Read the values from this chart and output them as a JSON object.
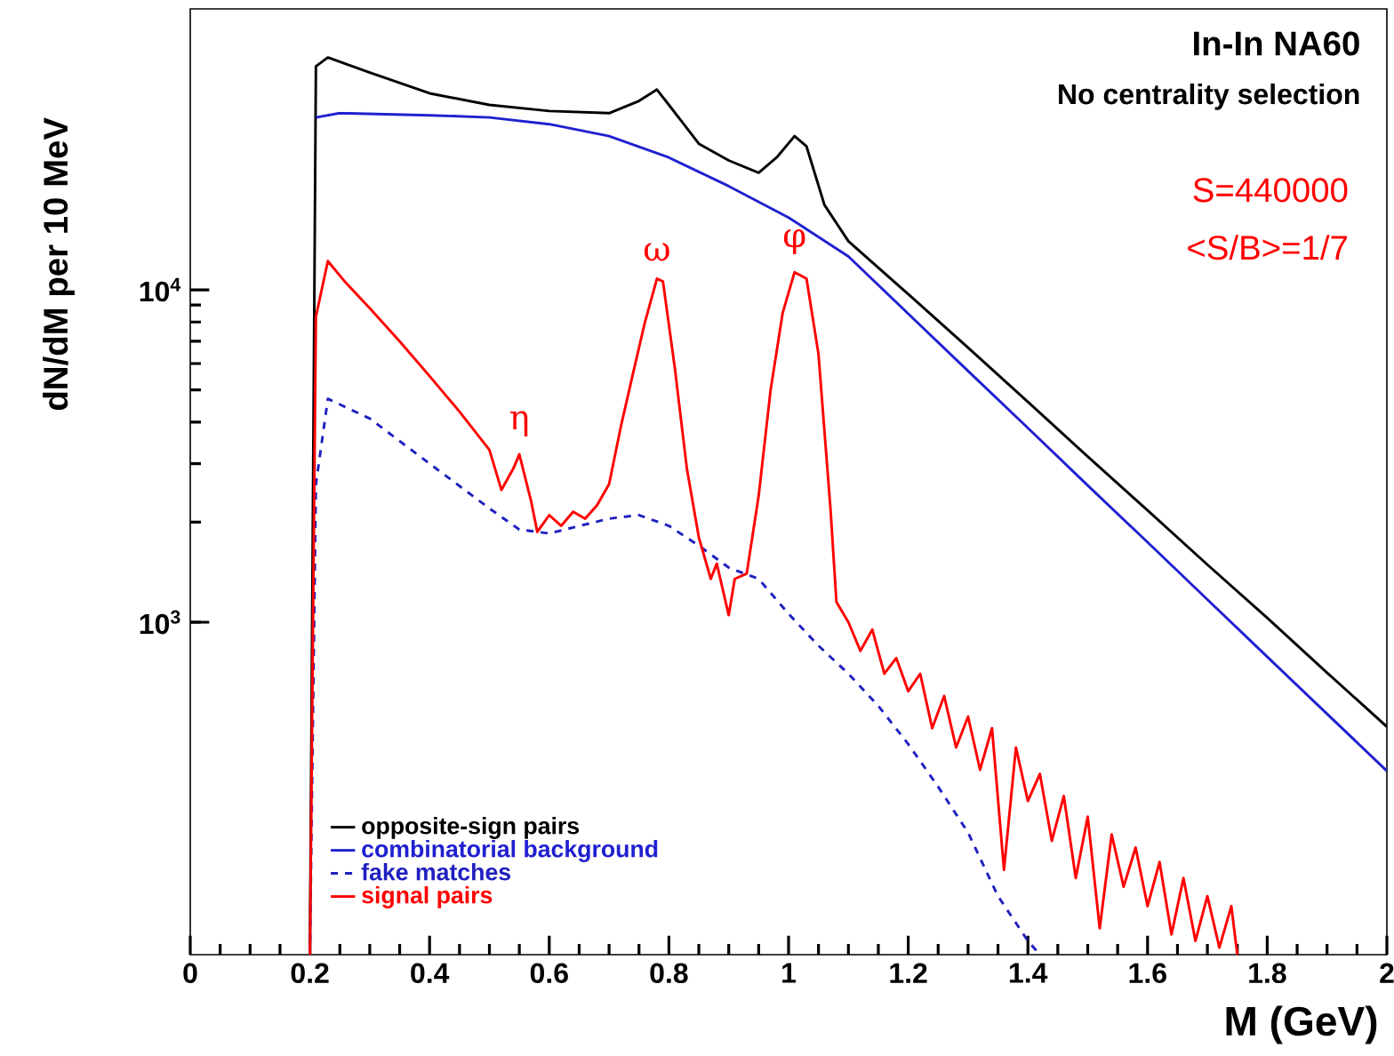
{
  "chart_data": {
    "type": "line",
    "title": "In-In  NA60",
    "subtitle": "No centrality selection",
    "xlabel": "M (GeV)",
    "ylabel": "dN/dM per 10 MeV",
    "log": "y",
    "xlim": [
      0,
      2
    ],
    "ylim": [
      100,
      70000
    ],
    "xticks": [
      0,
      0.2,
      0.4,
      0.6,
      0.8,
      1,
      1.2,
      1.4,
      1.6,
      1.8,
      2
    ],
    "yticks": [
      {
        "value": 1000,
        "label": "10$^{3}$"
      },
      {
        "value": 10000,
        "label": "10$^{4}$"
      }
    ],
    "legend": "bottom left",
    "grid": false,
    "series": [
      {
        "name": "opposite-sign pairs",
        "color": "#000000",
        "line_style": "solid",
        "x": [
          0.2,
          0.21,
          0.23,
          0.3,
          0.4,
          0.5,
          0.6,
          0.7,
          0.75,
          0.78,
          0.8,
          0.85,
          0.9,
          0.95,
          0.98,
          1.01,
          1.03,
          1.06,
          1.1,
          1.2,
          1.3,
          1.4,
          1.5,
          1.6,
          1.7,
          1.8,
          1.9,
          2.0
        ],
        "values": [
          100,
          47000,
          50000,
          45000,
          39000,
          36000,
          34500,
          34000,
          37000,
          40000,
          36000,
          27500,
          24500,
          22500,
          25000,
          29000,
          27000,
          18000,
          14000,
          9700,
          6700,
          4600,
          3150,
          2170,
          1490,
          1030,
          705,
          485
        ]
      },
      {
        "name": "combinatorial background",
        "color": "#2020d0",
        "line_style": "solid",
        "x": [
          0.21,
          0.25,
          0.4,
          0.5,
          0.6,
          0.7,
          0.8,
          0.9,
          1.0,
          1.1,
          1.2,
          1.3,
          1.4,
          1.5,
          1.6,
          1.7,
          1.8,
          1.9,
          2.0
        ],
        "values": [
          33000,
          34000,
          33500,
          33000,
          31500,
          29000,
          25000,
          20500,
          16500,
          12600,
          8470,
          5700,
          3840,
          2580,
          1740,
          1170,
          787,
          530,
          357
        ]
      },
      {
        "name": "fake matches",
        "color": "#2020c0",
        "line_style": "dashed",
        "x": [
          0.2,
          0.21,
          0.23,
          0.3,
          0.4,
          0.5,
          0.55,
          0.6,
          0.7,
          0.75,
          0.8,
          0.85,
          0.9,
          0.95,
          1.0,
          1.05,
          1.1,
          1.15,
          1.2,
          1.25,
          1.3,
          1.35,
          1.4,
          1.42
        ],
        "values": [
          100,
          2600,
          4700,
          4100,
          3000,
          2200,
          1900,
          1850,
          2050,
          2100,
          1950,
          1700,
          1460,
          1350,
          1060,
          850,
          700,
          560,
          430,
          320,
          233,
          150,
          110,
          100
        ]
      },
      {
        "name": "signal pairs",
        "color": "#ff0000",
        "line_style": "solid",
        "x": [
          0.2,
          0.21,
          0.23,
          0.26,
          0.3,
          0.35,
          0.4,
          0.45,
          0.5,
          0.52,
          0.54,
          0.55,
          0.57,
          0.58,
          0.6,
          0.62,
          0.64,
          0.66,
          0.68,
          0.7,
          0.72,
          0.74,
          0.76,
          0.78,
          0.79,
          0.81,
          0.83,
          0.85,
          0.87,
          0.88,
          0.9,
          0.91,
          0.93,
          0.95,
          0.97,
          0.99,
          1.01,
          1.03,
          1.05,
          1.07,
          1.08,
          1.1,
          1.12,
          1.14,
          1.16,
          1.18,
          1.2,
          1.22,
          1.24,
          1.26,
          1.28,
          1.3,
          1.32,
          1.34,
          1.36,
          1.38,
          1.4,
          1.42,
          1.44,
          1.46,
          1.48,
          1.5,
          1.52,
          1.54,
          1.56,
          1.58,
          1.6,
          1.62,
          1.64,
          1.66,
          1.68,
          1.7,
          1.72,
          1.74,
          1.75
        ],
        "values": [
          100,
          8300,
          12200,
          10500,
          8800,
          7000,
          5500,
          4300,
          3300,
          2500,
          2900,
          3200,
          2300,
          1870,
          2100,
          1950,
          2150,
          2050,
          2250,
          2600,
          3900,
          5600,
          8000,
          10800,
          10600,
          5800,
          2900,
          1800,
          1350,
          1500,
          1050,
          1350,
          1400,
          2400,
          5000,
          8500,
          11300,
          10800,
          6400,
          2200,
          1150,
          1000,
          820,
          950,
          700,
          780,
          620,
          700,
          480,
          600,
          420,
          520,
          360,
          480,
          180,
          420,
          290,
          350,
          220,
          300,
          170,
          260,
          120,
          230,
          160,
          210,
          140,
          190,
          115,
          170,
          110,
          150,
          105,
          140,
          100
        ]
      }
    ],
    "annotations": [
      {
        "text": "η",
        "x": 0.55,
        "y": 3200
      },
      {
        "text": "ω",
        "x": 0.78,
        "y": 10800
      },
      {
        "text": "φ",
        "x": 1.01,
        "y": 11300
      },
      "S=440000",
      "<S/B>=1/7"
    ]
  }
}
